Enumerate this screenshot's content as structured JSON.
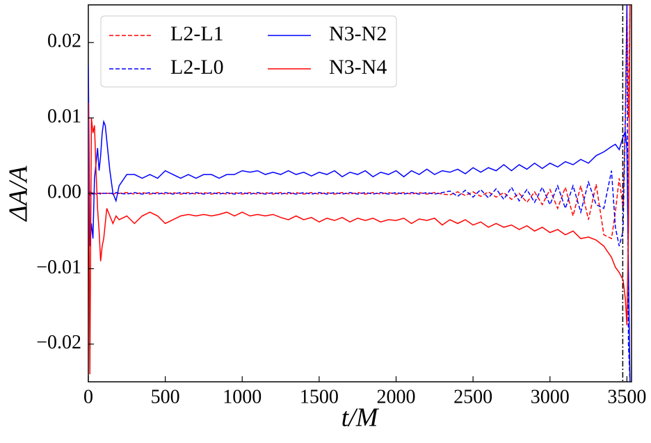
{
  "chart_data": {
    "type": "line",
    "xlabel": "t/M",
    "ylabel": "ΔA/A",
    "x": [
      0,
      10,
      20,
      30,
      40,
      50,
      60,
      70,
      80,
      90,
      100,
      110,
      120,
      140,
      160,
      180,
      200,
      250,
      300,
      350,
      400,
      450,
      500,
      550,
      600,
      650,
      700,
      750,
      800,
      850,
      900,
      950,
      1000,
      1050,
      1100,
      1150,
      1200,
      1250,
      1300,
      1350,
      1400,
      1450,
      1500,
      1550,
      1600,
      1650,
      1700,
      1750,
      1800,
      1850,
      1900,
      1950,
      2000,
      2050,
      2100,
      2150,
      2200,
      2250,
      2300,
      2350,
      2400,
      2450,
      2500,
      2550,
      2600,
      2650,
      2700,
      2750,
      2800,
      2850,
      2900,
      2950,
      3000,
      3050,
      3100,
      3150,
      3200,
      3250,
      3300,
      3350,
      3400,
      3425,
      3450,
      3475,
      3490,
      3500,
      3510,
      3520
    ],
    "series": [
      {
        "name": "L2-L1",
        "color": "#ff0000",
        "linestyle": "dashed",
        "values": [
          0.0005,
          -0.0003,
          0,
          0.0002,
          0,
          -0.0001,
          0,
          0.0001,
          0,
          0,
          0,
          0,
          0,
          0,
          -0.0001,
          0,
          0,
          0.0001,
          -0.0001,
          0.0001,
          -0.0001,
          0.0001,
          -0.0001,
          0.0001,
          -0.0001,
          0.0001,
          -0.0001,
          0.0001,
          -0.0001,
          0.0001,
          -0.0001,
          0.0001,
          -0.0001,
          0.0001,
          -0.0001,
          0.0001,
          -0.0001,
          0.0001,
          -0.0001,
          0.0001,
          -0.0001,
          0.0001,
          -0.0001,
          0.0001,
          -0.0001,
          0.0001,
          -0.0001,
          0.0001,
          -0.0001,
          0.0001,
          -0.0001,
          0.0001,
          -0.0001,
          0.0001,
          -0.0001,
          0.0001,
          -0.0001,
          0.0001,
          -0.0001,
          -0.0002,
          0.0002,
          -0.0003,
          0.0002,
          -0.0004,
          0.0002,
          -0.0005,
          0.0001,
          -0.0008,
          0,
          -0.0012,
          0.0002,
          -0.0015,
          0.0005,
          -0.002,
          0.0008,
          -0.003,
          0.001,
          -0.0035,
          0.0012,
          -0.0055,
          -0.006,
          -0.0025,
          0.002,
          -0.002,
          0.01,
          0.025,
          0.01,
          0.025
        ]
      },
      {
        "name": "L2-L0",
        "color": "#0000ff",
        "linestyle": "dashed",
        "values": [
          -0.0003,
          0.0002,
          0,
          -0.0001,
          0.0001,
          0,
          0,
          0,
          -0.0001,
          0,
          0,
          0,
          0,
          0,
          0,
          0.0001,
          0,
          -0.0001,
          0.0001,
          -0.0001,
          0.0001,
          -0.0001,
          0.0001,
          -0.0001,
          0.0001,
          -0.0001,
          0.0001,
          -0.0001,
          0.0001,
          -0.0001,
          0.0001,
          -0.0001,
          0.0001,
          -0.0001,
          0.0001,
          -0.0001,
          0.0001,
          -0.0001,
          0.0001,
          -0.0001,
          0.0001,
          -0.0001,
          0.0001,
          -0.0001,
          0.0001,
          -0.0001,
          0.0001,
          -0.0001,
          0.0001,
          -0.0001,
          0.0001,
          -0.0001,
          0.0001,
          -0.0001,
          0.0001,
          -0.0001,
          0.0001,
          -0.0001,
          0.0001,
          0.0003,
          -0.0004,
          0.0004,
          -0.0005,
          0.0005,
          -0.0006,
          0.0006,
          -0.0008,
          0.0008,
          -0.001,
          0.0005,
          -0.0012,
          0.0008,
          -0.0015,
          0.001,
          -0.002,
          0.001,
          -0.0025,
          0.0015,
          -0.0015,
          -0.002,
          0.003,
          -0.0045,
          -0.007,
          -0.005,
          0.01,
          0.025,
          -0.02,
          -0.025
        ]
      },
      {
        "name": "N3-N2",
        "color": "#0000ff",
        "linestyle": "solid",
        "values": [
          0.017,
          -0.007,
          -0.004,
          -0.006,
          0.002,
          0.004,
          0.006,
          0.003,
          0.005,
          0.008,
          0.0095,
          0.009,
          0.007,
          0.003,
          0.0,
          -0.001,
          0.001,
          0.0025,
          0.0025,
          0.002,
          0.0025,
          0.002,
          0.003,
          0.0025,
          0.002,
          0.0025,
          0.002,
          0.0025,
          0.0025,
          0.002,
          0.0025,
          0.0025,
          0.003,
          0.0028,
          0.003,
          0.0025,
          0.0028,
          0.0025,
          0.003,
          0.0025,
          0.0028,
          0.0023,
          0.0028,
          0.0025,
          0.003,
          0.0022,
          0.0028,
          0.0025,
          0.003,
          0.0022,
          0.0028,
          0.0025,
          0.003,
          0.0022,
          0.003,
          0.0025,
          0.0032,
          0.0025,
          0.003,
          0.0028,
          0.0032,
          0.0026,
          0.0034,
          0.0028,
          0.0034,
          0.003,
          0.0038,
          0.003,
          0.0038,
          0.0032,
          0.004,
          0.0033,
          0.004,
          0.0035,
          0.0042,
          0.0038,
          0.0045,
          0.004,
          0.005,
          0.0055,
          0.0062,
          0.0065,
          0.0058,
          0.0075,
          0.0082,
          0.006,
          -0.01,
          -0.025
        ]
      },
      {
        "name": "N3-N4",
        "color": "#ff0000",
        "linestyle": "solid",
        "values": [
          0.012,
          -0.024,
          0.01,
          0.008,
          0.009,
          0.003,
          -0.002,
          -0.005,
          -0.009,
          -0.007,
          -0.006,
          -0.004,
          -0.002,
          -0.003,
          -0.004,
          -0.003,
          -0.0035,
          -0.003,
          -0.004,
          -0.003,
          -0.0025,
          -0.003,
          -0.004,
          -0.0035,
          -0.003,
          -0.0028,
          -0.003,
          -0.0028,
          -0.003,
          -0.0028,
          -0.0025,
          -0.003,
          -0.0025,
          -0.003,
          -0.0028,
          -0.003,
          -0.0028,
          -0.0032,
          -0.0035,
          -0.003,
          -0.0035,
          -0.0032,
          -0.0038,
          -0.0033,
          -0.0036,
          -0.0032,
          -0.0038,
          -0.0033,
          -0.0036,
          -0.0033,
          -0.0038,
          -0.0035,
          -0.0036,
          -0.0033,
          -0.004,
          -0.0034,
          -0.0036,
          -0.0033,
          -0.0042,
          -0.0035,
          -0.004,
          -0.0035,
          -0.0042,
          -0.0038,
          -0.0045,
          -0.004,
          -0.0045,
          -0.0042,
          -0.0048,
          -0.0043,
          -0.005,
          -0.0045,
          -0.0052,
          -0.0048,
          -0.0055,
          -0.005,
          -0.006,
          -0.0058,
          -0.0062,
          -0.007,
          -0.0085,
          -0.0098,
          -0.0105,
          -0.0115,
          -0.014,
          -0.0175,
          -0.005,
          0.025
        ]
      }
    ],
    "vline": 3473,
    "vline_color": "#000000",
    "xlim": [
      0,
      3530
    ],
    "ylim": [
      -0.025,
      0.025
    ],
    "xticks": [
      0,
      500,
      1000,
      1500,
      2000,
      2500,
      3000,
      3500
    ],
    "yticks": [
      {
        "value": -0.02,
        "label": "−0.02"
      },
      {
        "value": -0.01,
        "label": "−0.01"
      },
      {
        "value": 0,
        "label": "0.00"
      },
      0.01,
      0.02
    ],
    "legend": "upper left",
    "legend_columns": 2,
    "grid": false
  }
}
